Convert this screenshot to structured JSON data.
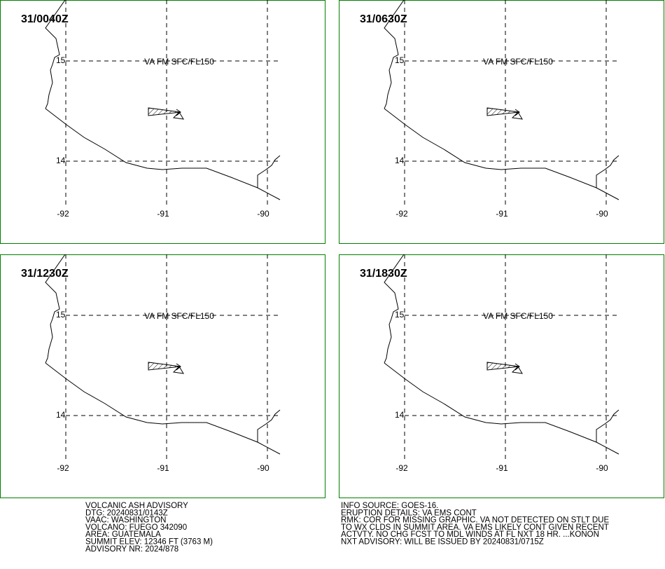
{
  "panels": [
    {
      "time": "31/0040Z"
    },
    {
      "time": "31/0630Z"
    },
    {
      "time": "31/1230Z"
    },
    {
      "time": "31/1830Z"
    }
  ],
  "grid": {
    "lat": [
      "15",
      "14"
    ],
    "lon": [
      "-92",
      "-91",
      "-90"
    ]
  },
  "annotation": "VA FM SFC/FL150",
  "advisory_left": [
    "VOLCANIC ASH ADVISORY",
    "DTG: 20240831/0143Z",
    "VAAC: WASHINGTON",
    "VOLCANO: FUEGO 342090",
    "AREA: GUATEMALA",
    "SUMMIT ELEV: 12346 FT (3763 M)",
    "ADVISORY NR: 2024/878"
  ],
  "advisory_right": [
    "INFO SOURCE: GOES-16.",
    "ERUPTION DETAILS: VA EMS CONT",
    "RMK: COR FOR MISSING GRAPHIC. VA NOT DETECTED ON STLT DUE",
    "TO WX CLDS IN SUMMIT AREA. VA EMS LIKELY CONT GIVEN RECENT",
    "ACTVTY. NO CHG FCST TO MDL WINDS AT FL NXT 18 HR. ...KONON",
    "NXT ADVISORY: WILL BE ISSUED BY 20240831/0715Z"
  ]
}
